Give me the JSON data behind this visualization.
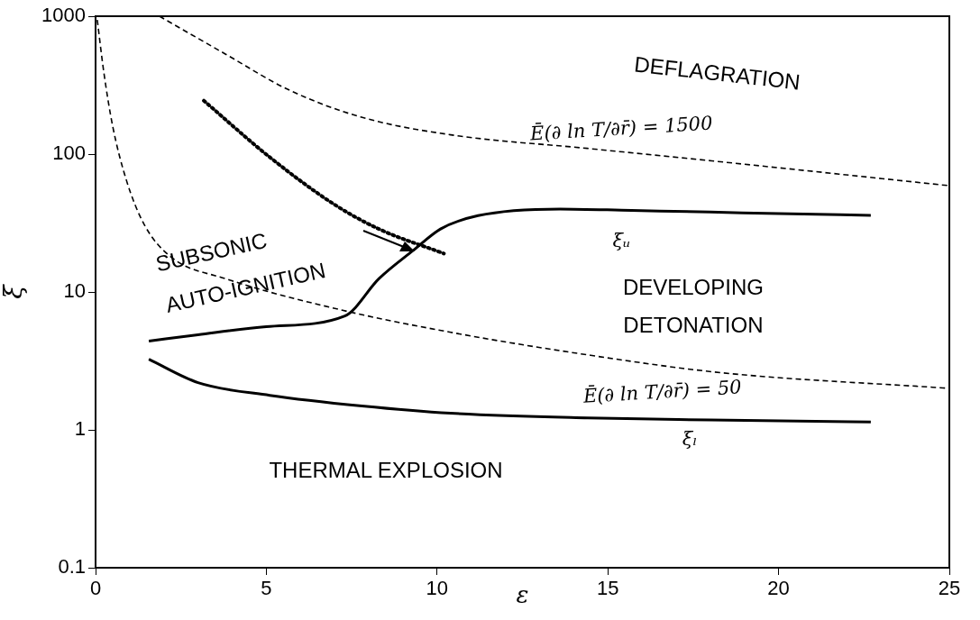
{
  "chart_data": {
    "type": "line",
    "xlabel": "ε",
    "ylabel": "ξ",
    "log": "y",
    "grid": false,
    "legend": false,
    "marker": "none",
    "xlim": [
      0,
      25
    ],
    "xticks": [
      0,
      5,
      10,
      15,
      20,
      25
    ],
    "ylim": [
      0.1,
      1000
    ],
    "yticks": [
      0.1,
      1,
      10,
      100,
      1000
    ],
    "series": [
      {
        "color": "#000000",
        "line_style": "solid",
        "x": [
          1.56,
          3,
          5,
          7.3,
          8.3,
          9.3,
          10.1,
          11.2,
          13.6,
          15.7,
          18,
          20,
          22.7
        ],
        "values": [
          4.4,
          4.9,
          5.6,
          6.7,
          12.5,
          20,
          28.6,
          35.8,
          40,
          39,
          38,
          37,
          36
        ]
      },
      {
        "color": "#000000",
        "line_style": "solid",
        "x": [
          1.56,
          3,
          5.1,
          7.8,
          10.4,
          14.4,
          18,
          22.7
        ],
        "values": [
          3.25,
          2.2,
          1.78,
          1.49,
          1.32,
          1.22,
          1.18,
          1.14
        ]
      },
      {
        "color": "#000000",
        "line_style": "dashed",
        "x": [
          1.87,
          3.8,
          5.65,
          7.76,
          10.4,
          14.4,
          18.3,
          25
        ],
        "values": [
          1000,
          532,
          293,
          186,
          138,
          110,
          88,
          59
        ]
      },
      {
        "color": "#000000",
        "line_style": "dashed",
        "x": [
          0.05,
          0.24,
          0.5,
          0.9,
          1.42,
          2.2,
          3.8,
          7.2,
          10.4,
          14.4,
          18.3,
          25
        ],
        "values": [
          940,
          395,
          160,
          65,
          31,
          18,
          12.5,
          7.4,
          5.1,
          3.5,
          2.6,
          2
        ]
      },
      {
        "color": "#000000",
        "line_style": "dotted",
        "x": [
          3.17,
          5.1,
          7,
          8.3,
          10.2
        ],
        "values": [
          244,
          95,
          43,
          28.6,
          19
        ]
      }
    ],
    "annotations": [
      "Ē(∂ ln T/∂r̄) = 1500",
      "Ē(∂ ln T/∂r̄) = 50",
      "ξᵤ",
      "ξₗ",
      "DEFLAGRATION",
      "SUBSONIC",
      "AUTO-IGNITION",
      "DEVELOPING",
      "DETONATION",
      "THERMAL EXPLOSION"
    ]
  }
}
